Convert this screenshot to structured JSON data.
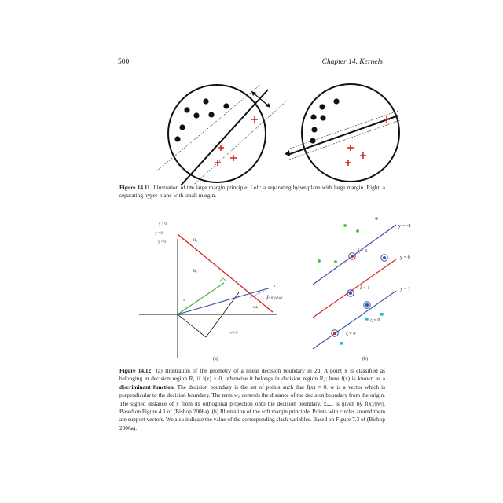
{
  "header": {
    "page_number": "500",
    "chapter": "Chapter 14.  Kernels"
  },
  "fig1411": {
    "label": "Figure 14.11",
    "text": "Illustration of the large margin principle. Left: a separating hyper-plane with large margin. Right: a separating hyper-plane with small margin."
  },
  "fig1412": {
    "label": "Figure 14.12",
    "text_1": "(a) Illustration of the geometry of a linear decision boundary in 2d. A point x is classified as belonging in decision region R₁ if f(x) > 0, otherwise it belongs in decision region R₂; here f(x) is known as a ",
    "bold_term": "discriminant function",
    "text_2": ". The decision boundary is the set of points such that f(x) = 0. w is a vector which is perpendicular to the decision boundary. The term w₀ controls the distance of the decision boundary from the origin. The signed distance of x from its orthogonal projection onto the decision boundary, x⊥, is given by f(x)/||w||. Based on Figure 4.1 of (Bishop 2006a). (b) Illustration of the soft margin principle. Points with circles around them are support vectors. We also indicate the value of the corresponding slack variables. Based on Figure 7.3 of (Bishop 2006a).",
    "panel_a": {
      "sublabel": "(a)",
      "y_gt0": "y > 0",
      "y_eq0": "y = 0",
      "y_lt0": "y < 0",
      "R1": "R₁",
      "R2": "R₂",
      "x": "x",
      "w": "w",
      "x_perp": "x⊥",
      "dist_expr": "y = f(x)/||w||",
      "w0_expr": "−w₀/||w||"
    },
    "panel_b": {
      "sublabel": "(b)",
      "y_m1": "y = −1",
      "y_0": "y = 0",
      "y_1": "y = 1",
      "xi_gt1": "ξ > 1",
      "xi_lt1": "ξ < 1",
      "xi_0a": "ξ = 0",
      "xi_0b": "ξ = 0"
    }
  }
}
